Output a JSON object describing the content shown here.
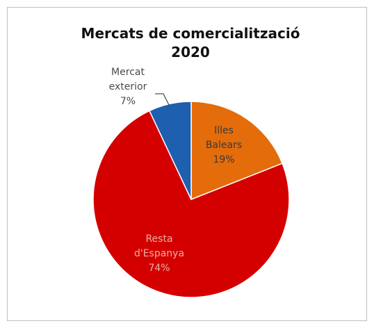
{
  "chart_data": {
    "type": "pie",
    "title": "Mercats de comercialització 2020",
    "title_lines": [
      "Mercats de comercialització",
      "2020"
    ],
    "slices": [
      {
        "name": "Illes Balears",
        "name_lines": [
          "Illes",
          "Balears"
        ],
        "value": 19,
        "value_label": "19%",
        "color": "#E46C0A",
        "label_color": "#3a3a3a"
      },
      {
        "name": "Resta d'Espanya",
        "name_lines": [
          "Resta",
          "d'Espanya"
        ],
        "value": 74,
        "value_label": "74%",
        "color": "#D40000",
        "label_color": "#e8b0a0"
      },
      {
        "name": "Mercat exterior",
        "name_lines": [
          "Mercat",
          "exterior"
        ],
        "value": 7,
        "value_label": "7%",
        "color": "#1F5FAF",
        "label_color": "#4a4a4a"
      }
    ],
    "start": "12 o'clock",
    "direction": "clockwise",
    "legend": "none"
  }
}
